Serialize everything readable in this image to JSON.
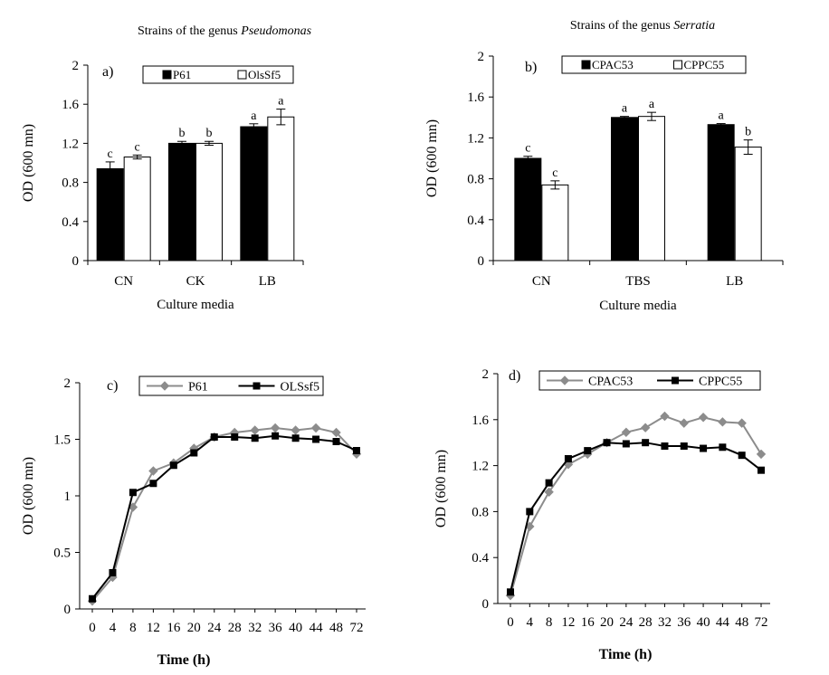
{
  "figure": {
    "panels": [
      "a)",
      "b)",
      "c)",
      "d)"
    ]
  },
  "chart_data": [
    {
      "type": "bar",
      "panel_label": "a)",
      "title_prefix": "Strains of the genus ",
      "title_genus": "Pseudomonas",
      "xlabel": "Culture media",
      "ylabel": "OD (600 mn)",
      "ylim": [
        0,
        2
      ],
      "yticks": [
        "0",
        "0.4",
        "0.8",
        "1.2",
        "1.6",
        "2"
      ],
      "categories": [
        "CN",
        "CK",
        "LB"
      ],
      "series": [
        {
          "name": "P61",
          "color": "#000000",
          "values": [
            0.94,
            1.2,
            1.37
          ],
          "errors": [
            0.07,
            0.02,
            0.03
          ],
          "letters": [
            "c",
            "b",
            "a"
          ]
        },
        {
          "name": "OlsSf5",
          "color": "#ffffff",
          "values": [
            1.06,
            1.2,
            1.47
          ],
          "errors": [
            0.02,
            0.02,
            0.08
          ],
          "letters": [
            "c",
            "b",
            "a"
          ]
        }
      ],
      "legend_position": "top-center"
    },
    {
      "type": "bar",
      "panel_label": "b)",
      "title_prefix": "Strains of the genus ",
      "title_genus": "Serratia",
      "xlabel": "Culture media",
      "ylabel": "OD (600 mn)",
      "ylim": [
        0,
        2
      ],
      "yticks": [
        "0",
        "0.4",
        "0.8",
        "1.2",
        "1.6",
        "2"
      ],
      "categories": [
        "CN",
        "TBS",
        "LB"
      ],
      "series": [
        {
          "name": "CPAC53",
          "color": "#000000",
          "values": [
            1.0,
            1.4,
            1.33
          ],
          "errors": [
            0.02,
            0.01,
            0.01
          ],
          "letters": [
            "c",
            "a",
            "a"
          ]
        },
        {
          "name": "CPPC55",
          "color": "#ffffff",
          "values": [
            0.74,
            1.41,
            1.11
          ],
          "errors": [
            0.04,
            0.04,
            0.07
          ],
          "letters": [
            "c",
            "a",
            "b"
          ]
        }
      ],
      "legend_position": "top-center"
    },
    {
      "type": "line",
      "panel_label": "c)",
      "xlabel": "Time (h)",
      "ylabel": "OD (600 mn)",
      "ylim": [
        0,
        2
      ],
      "yticks": [
        "0",
        "0.5",
        "1",
        "1.5",
        "2"
      ],
      "x": [
        "0",
        "4",
        "8",
        "12",
        "16",
        "20",
        "24",
        "28",
        "32",
        "36",
        "40",
        "44",
        "48",
        "72"
      ],
      "series": [
        {
          "name": "P61",
          "color": "#8c8c8c",
          "marker": "diamond",
          "values": [
            0.07,
            0.28,
            0.9,
            1.22,
            1.29,
            1.42,
            1.52,
            1.56,
            1.58,
            1.6,
            1.58,
            1.6,
            1.56,
            1.37
          ]
        },
        {
          "name": "OLSsf5",
          "color": "#000000",
          "marker": "square",
          "values": [
            0.09,
            0.32,
            1.03,
            1.11,
            1.27,
            1.38,
            1.52,
            1.52,
            1.51,
            1.53,
            1.51,
            1.5,
            1.48,
            1.4
          ]
        }
      ],
      "legend_position": "top-center"
    },
    {
      "type": "line",
      "panel_label": "d)",
      "xlabel": "Time (h)",
      "ylabel": "OD (600 mn)",
      "ylim": [
        0,
        2
      ],
      "yticks": [
        "0",
        "0.4",
        "0.8",
        "1.2",
        "1.6",
        "2"
      ],
      "x": [
        "0",
        "4",
        "8",
        "12",
        "16",
        "20",
        "24",
        "28",
        "32",
        "36",
        "40",
        "44",
        "48",
        "72"
      ],
      "series": [
        {
          "name": "CPAC53",
          "color": "#8c8c8c",
          "marker": "diamond",
          "values": [
            0.07,
            0.67,
            0.97,
            1.21,
            1.3,
            1.4,
            1.49,
            1.53,
            1.63,
            1.57,
            1.62,
            1.58,
            1.57,
            1.3
          ]
        },
        {
          "name": "CPPC55",
          "color": "#000000",
          "marker": "square",
          "values": [
            0.1,
            0.8,
            1.05,
            1.26,
            1.33,
            1.4,
            1.39,
            1.4,
            1.37,
            1.37,
            1.35,
            1.36,
            1.29,
            1.16
          ]
        }
      ],
      "legend_position": "top-center"
    }
  ]
}
